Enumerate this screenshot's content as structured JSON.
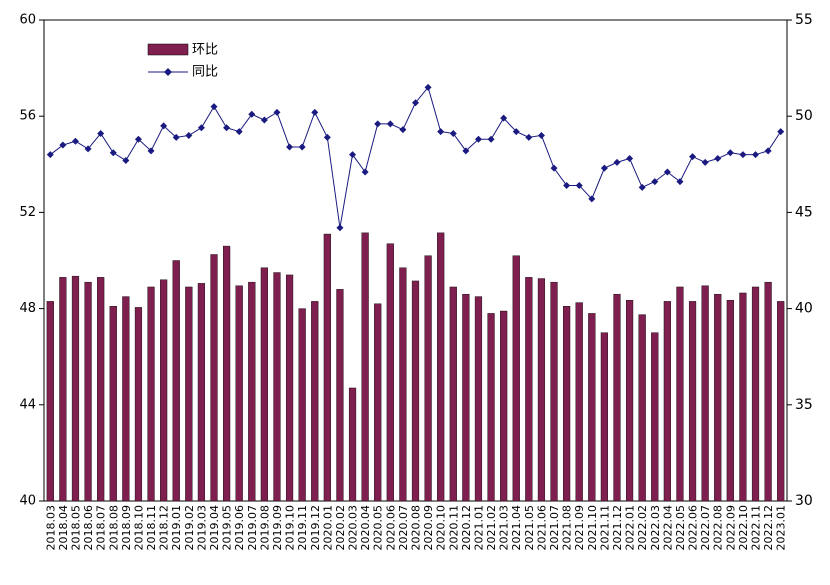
{
  "chart_data": {
    "type": "bar_line",
    "categories": [
      "2018.03",
      "2018.04",
      "2018.05",
      "2018.06",
      "2018.07",
      "2018.08",
      "2018.09",
      "2018.10",
      "2018.11",
      "2018.12",
      "2019.01",
      "2019.02",
      "2019.03",
      "2019.04",
      "2019.05",
      "2019.06",
      "2019.07",
      "2019.08",
      "2019.09",
      "2019.10",
      "2019.11",
      "2019.12",
      "2020.01",
      "2020.02",
      "2020.03",
      "2020.04",
      "2020.05",
      "2020.06",
      "2020.07",
      "2020.08",
      "2020.09",
      "2020.10",
      "2020.11",
      "2020.12",
      "2021.01",
      "2021.02",
      "2021.03",
      "2021.04",
      "2021.05",
      "2021.06",
      "2021.07",
      "2021.08",
      "2021.09",
      "2021.10",
      "2021.11",
      "2021.12",
      "2022.01",
      "2022.02",
      "2022.03",
      "2022.04",
      "2022.05",
      "2022.06",
      "2022.07",
      "2022.08",
      "2022.09",
      "2022.10",
      "2022.11",
      "2022.12",
      "2023.01"
    ],
    "series": [
      {
        "name": "环比",
        "type": "bar",
        "color": "#7f1f4f",
        "values": [
          48.3,
          49.3,
          49.35,
          49.1,
          49.3,
          48.1,
          48.5,
          48.05,
          48.9,
          49.2,
          50.0,
          48.9,
          49.05,
          50.25,
          50.6,
          48.95,
          49.1,
          49.7,
          49.5,
          49.4,
          48.0,
          48.3,
          51.1,
          48.8,
          44.7,
          51.15,
          48.2,
          50.7,
          49.7,
          49.15,
          50.2,
          51.15,
          48.9,
          48.6,
          48.5,
          47.8,
          47.9,
          50.2,
          49.3,
          49.25,
          49.1,
          48.1,
          48.25,
          47.8,
          47.0,
          48.6,
          48.35,
          47.75,
          47.0,
          48.3,
          48.9,
          48.3,
          48.95,
          48.6,
          48.35,
          48.65,
          48.9,
          49.1,
          48.3
        ]
      },
      {
        "name": "同比",
        "type": "line",
        "axis": "y2",
        "color": "#1a1a80",
        "values": [
          48.0,
          48.5,
          48.7,
          48.3,
          49.1,
          48.1,
          47.7,
          48.8,
          48.2,
          49.5,
          48.9,
          49.0,
          49.4,
          50.5,
          49.4,
          49.2,
          50.1,
          49.8,
          50.2,
          48.4,
          48.4,
          50.2,
          48.9,
          44.2,
          48.0,
          47.1,
          49.6,
          49.6,
          49.3,
          50.7,
          51.5,
          49.2,
          49.1,
          48.2,
          48.8,
          48.8,
          49.9,
          49.2,
          48.9,
          49.0,
          47.3,
          46.4,
          46.4,
          45.7,
          47.3,
          47.6,
          47.8,
          46.3,
          46.6,
          47.1,
          46.6,
          47.9,
          47.6,
          47.8,
          48.1,
          48.0,
          48.0,
          48.2,
          49.2
        ]
      }
    ],
    "ylim": [
      40,
      60
    ],
    "yticks": [
      40,
      44,
      48,
      52,
      56,
      60
    ],
    "y2lim": [
      30,
      55
    ],
    "y2ticks": [
      30,
      35,
      40,
      45,
      50,
      55
    ]
  }
}
